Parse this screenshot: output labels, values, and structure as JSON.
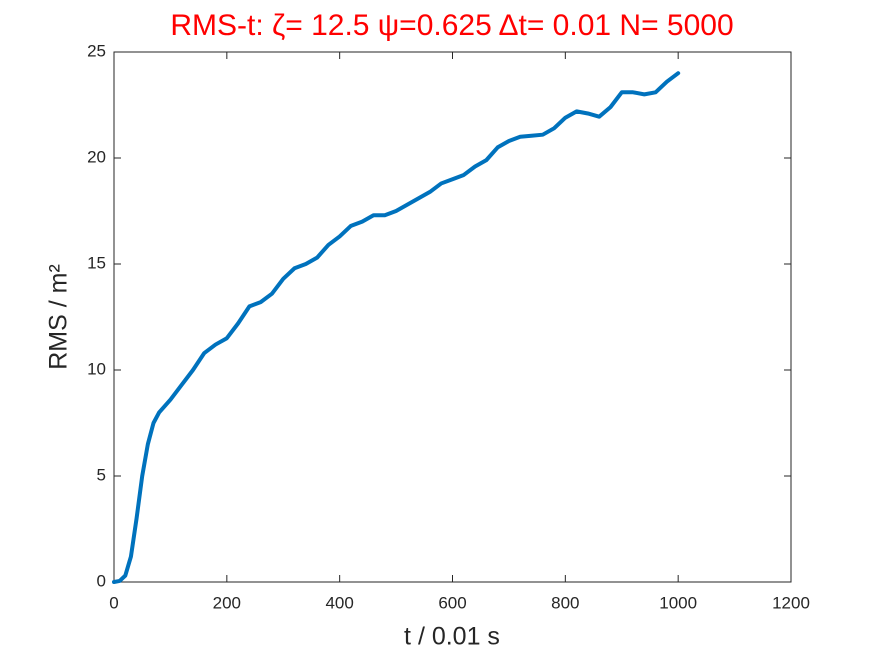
{
  "chart_data": {
    "type": "line",
    "title": "RMS-t:  ζ= 12.5 ψ=0.625 Δt= 0.01 N= 5000",
    "title_color": "#ff0000",
    "x_label": "t / 0.01 s",
    "y_label": "RMS / m²",
    "x": [
      0,
      10,
      20,
      30,
      40,
      50,
      60,
      70,
      80,
      100,
      120,
      140,
      160,
      180,
      200,
      220,
      240,
      260,
      280,
      300,
      320,
      340,
      360,
      380,
      400,
      420,
      440,
      460,
      480,
      500,
      520,
      540,
      560,
      580,
      600,
      620,
      640,
      660,
      680,
      700,
      720,
      740,
      760,
      780,
      800,
      820,
      840,
      860,
      880,
      900,
      920,
      940,
      960,
      980,
      1000
    ],
    "values": [
      0,
      0.05,
      0.3,
      1.2,
      3,
      5,
      6.5,
      7.5,
      8,
      8.6,
      9.3,
      10,
      10.8,
      11.2,
      11.5,
      12.2,
      13,
      13.2,
      13.6,
      14.3,
      14.8,
      15,
      15.3,
      15.9,
      16.3,
      16.8,
      17,
      17.3,
      17.3,
      17.5,
      17.8,
      18.1,
      18.4,
      18.8,
      19,
      19.2,
      19.6,
      19.9,
      20.5,
      20.8,
      21,
      21.05,
      21.1,
      21.4,
      21.9,
      22.2,
      22.1,
      21.95,
      22.4,
      23.1,
      23.1,
      23,
      23.1,
      23.6,
      24
    ],
    "color": "#0072bd",
    "xlim": [
      0,
      1200
    ],
    "xticks": [
      0,
      200,
      400,
      600,
      800,
      1000,
      1200
    ],
    "ylim": [
      0,
      25
    ],
    "yticks": [
      0,
      5,
      10,
      15,
      20,
      25
    ],
    "grid": false
  }
}
